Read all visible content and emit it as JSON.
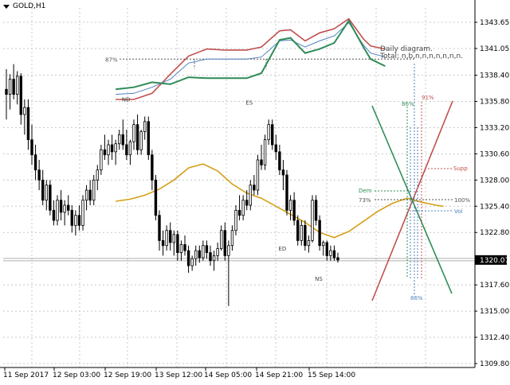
{
  "window": {
    "symbol_title": "GOLD,H1"
  },
  "chart_data": {
    "type": "candlestick",
    "symbol": "GOLD",
    "timeframe": "H1",
    "ylim": [
      1309.0,
      1345.5
    ],
    "y_ticks": [
      "1343.65",
      "1341.05",
      "1338.40",
      "1335.80",
      "1333.20",
      "1330.60",
      "1328.00",
      "1325.40",
      "1322.80",
      "1320.07",
      "1317.60",
      "1315.00",
      "1312.40",
      "1309.80"
    ],
    "current_price": "1320.07",
    "x_ticks": [
      "11 Sep 2017",
      "12 Sep 03:00",
      "12 Sep 19:00",
      "13 Sep 12:00",
      "14 Sep 05:00",
      "14 Sep 21:00",
      "15 Sep 14:00"
    ],
    "candles": [
      [
        1337.0,
        1339.0,
        1334.0,
        1336.5
      ],
      [
        1336.5,
        1338.5,
        1335.0,
        1338.0
      ],
      [
        1338.0,
        1339.5,
        1336.0,
        1336.5
      ],
      [
        1336.5,
        1338.8,
        1335.5,
        1338.3
      ],
      [
        1338.3,
        1338.6,
        1333.5,
        1334.5
      ],
      [
        1334.5,
        1336.0,
        1332.5,
        1335.2
      ],
      [
        1335.2,
        1336.0,
        1331.0,
        1332.0
      ],
      [
        1332.0,
        1333.5,
        1329.5,
        1330.5
      ],
      [
        1330.5,
        1331.5,
        1328.0,
        1329.0
      ],
      [
        1329.0,
        1330.0,
        1327.0,
        1328.0
      ],
      [
        1328.0,
        1329.0,
        1325.5,
        1326.0
      ],
      [
        1326.0,
        1328.0,
        1325.0,
        1327.5
      ],
      [
        1327.5,
        1328.0,
        1324.5,
        1325.0
      ],
      [
        1325.0,
        1326.0,
        1323.5,
        1324.0
      ],
      [
        1324.0,
        1326.5,
        1323.5,
        1326.0
      ],
      [
        1326.0,
        1327.0,
        1324.0,
        1324.8
      ],
      [
        1324.8,
        1326.0,
        1323.5,
        1325.5
      ],
      [
        1325.5,
        1326.5,
        1324.5,
        1325.0
      ],
      [
        1325.0,
        1325.5,
        1322.8,
        1323.5
      ],
      [
        1323.5,
        1325.0,
        1322.5,
        1324.5
      ],
      [
        1324.5,
        1325.5,
        1323.0,
        1323.5
      ],
      [
        1323.5,
        1326.5,
        1323.0,
        1326.0
      ],
      [
        1326.0,
        1327.5,
        1325.0,
        1327.0
      ],
      [
        1327.0,
        1328.0,
        1325.5,
        1326.0
      ],
      [
        1326.0,
        1328.5,
        1325.5,
        1328.0
      ],
      [
        1328.0,
        1329.5,
        1327.0,
        1329.0
      ],
      [
        1329.0,
        1331.5,
        1328.5,
        1331.0
      ],
      [
        1331.0,
        1332.5,
        1330.0,
        1330.5
      ],
      [
        1330.5,
        1332.0,
        1329.5,
        1331.5
      ],
      [
        1331.5,
        1332.5,
        1330.0,
        1330.8
      ],
      [
        1330.8,
        1332.0,
        1329.5,
        1331.6
      ],
      [
        1331.6,
        1333.0,
        1331.0,
        1332.5
      ],
      [
        1332.5,
        1334.0,
        1331.0,
        1331.5
      ],
      [
        1331.5,
        1333.0,
        1330.0,
        1330.5
      ],
      [
        1330.5,
        1332.0,
        1329.5,
        1331.8
      ],
      [
        1331.8,
        1334.0,
        1331.0,
        1333.5
      ],
      [
        1333.5,
        1334.5,
        1330.5,
        1331.0
      ],
      [
        1331.0,
        1333.0,
        1330.5,
        1332.8
      ],
      [
        1332.8,
        1334.3,
        1332.0,
        1333.8
      ],
      [
        1333.8,
        1334.3,
        1330.0,
        1330.5
      ],
      [
        1330.5,
        1331.0,
        1327.0,
        1328.0
      ],
      [
        1328.0,
        1328.5,
        1324.0,
        1324.5
      ],
      [
        1324.5,
        1325.0,
        1321.0,
        1322.0
      ],
      [
        1322.0,
        1323.0,
        1320.5,
        1321.5
      ],
      [
        1321.5,
        1323.5,
        1321.0,
        1323.0
      ],
      [
        1323.0,
        1323.8,
        1321.0,
        1321.8
      ],
      [
        1321.8,
        1323.0,
        1320.5,
        1322.6
      ],
      [
        1322.6,
        1323.0,
        1320.0,
        1320.8
      ],
      [
        1320.8,
        1322.0,
        1320.0,
        1321.6
      ],
      [
        1321.6,
        1322.5,
        1320.5,
        1321.0
      ],
      [
        1321.0,
        1321.5,
        1318.8,
        1319.5
      ],
      [
        1319.5,
        1320.5,
        1319.0,
        1320.2
      ],
      [
        1320.2,
        1321.5,
        1319.5,
        1321.0
      ],
      [
        1321.0,
        1321.5,
        1319.8,
        1320.3
      ],
      [
        1320.3,
        1322.0,
        1320.0,
        1321.5
      ],
      [
        1321.5,
        1322.0,
        1320.2,
        1320.8
      ],
      [
        1320.8,
        1321.5,
        1319.5,
        1320.0
      ],
      [
        1320.0,
        1321.0,
        1319.0,
        1320.5
      ],
      [
        1320.5,
        1321.8,
        1320.0,
        1321.2
      ],
      [
        1321.2,
        1323.5,
        1321.0,
        1323.0
      ],
      [
        1323.0,
        1323.8,
        1320.0,
        1320.5
      ],
      [
        1320.5,
        1322.0,
        1315.5,
        1321.5
      ],
      [
        1321.5,
        1323.5,
        1321.0,
        1323.0
      ],
      [
        1323.0,
        1325.5,
        1322.5,
        1325.0
      ],
      [
        1325.0,
        1326.5,
        1324.0,
        1324.5
      ],
      [
        1324.5,
        1326.5,
        1324.0,
        1326.0
      ],
      [
        1326.0,
        1327.0,
        1325.0,
        1325.5
      ],
      [
        1325.5,
        1328.0,
        1325.0,
        1327.5
      ],
      [
        1327.5,
        1328.5,
        1326.5,
        1327.0
      ],
      [
        1327.0,
        1330.5,
        1326.5,
        1330.0
      ],
      [
        1330.0,
        1331.5,
        1329.0,
        1329.5
      ],
      [
        1329.5,
        1332.5,
        1329.0,
        1332.0
      ],
      [
        1332.0,
        1334.0,
        1331.5,
        1333.5
      ],
      [
        1333.5,
        1334.0,
        1331.0,
        1331.5
      ],
      [
        1331.5,
        1332.5,
        1330.0,
        1330.8
      ],
      [
        1330.8,
        1331.5,
        1328.5,
        1329.0
      ],
      [
        1329.0,
        1330.0,
        1327.0,
        1328.5
      ],
      [
        1328.5,
        1329.0,
        1324.5,
        1325.0
      ],
      [
        1325.0,
        1326.5,
        1324.0,
        1326.0
      ],
      [
        1326.0,
        1326.8,
        1323.5,
        1324.0
      ],
      [
        1324.0,
        1324.5,
        1321.5,
        1322.0
      ],
      [
        1322.0,
        1324.0,
        1321.5,
        1323.5
      ],
      [
        1323.5,
        1324.0,
        1321.0,
        1321.5
      ],
      [
        1321.5,
        1322.5,
        1320.8,
        1322.0
      ],
      [
        1322.0,
        1326.5,
        1321.8,
        1326.0
      ],
      [
        1326.0,
        1326.5,
        1323.5,
        1324.0
      ],
      [
        1324.0,
        1324.5,
        1321.0,
        1321.5
      ],
      [
        1321.5,
        1322.0,
        1320.5,
        1321.8
      ],
      [
        1321.8,
        1322.0,
        1320.0,
        1320.5
      ],
      [
        1320.5,
        1321.5,
        1320.0,
        1321.0
      ],
      [
        1321.0,
        1321.5,
        1320.0,
        1320.3
      ],
      [
        1320.3,
        1320.8,
        1319.8,
        1320.07
      ]
    ],
    "moving_average": {
      "color": "#d4a017",
      "values": [
        [
          0,
          1325.9
        ],
        [
          4,
          1326.1
        ],
        [
          8,
          1326.5
        ],
        [
          12,
          1327.1
        ],
        [
          16,
          1328.0
        ],
        [
          20,
          1329.2
        ],
        [
          24,
          1329.6
        ],
        [
          28,
          1328.9
        ],
        [
          32,
          1327.6
        ],
        [
          36,
          1326.7
        ],
        [
          40,
          1326.2
        ],
        [
          44,
          1325.4
        ],
        [
          48,
          1324.6
        ],
        [
          52,
          1323.8
        ],
        [
          56,
          1322.8
        ],
        [
          60,
          1322.3
        ],
        [
          64,
          1322.9
        ],
        [
          68,
          1323.9
        ],
        [
          72,
          1324.9
        ],
        [
          76,
          1325.7
        ],
        [
          80,
          1326.2
        ],
        [
          84,
          1325.8
        ],
        [
          88,
          1325.5
        ],
        [
          90,
          1325.4
        ]
      ]
    },
    "envelope": {
      "red": [
        [
          0,
          1336.0
        ],
        [
          5,
          1336.0
        ],
        [
          10,
          1336.6
        ],
        [
          15,
          1338.5
        ],
        [
          20,
          1340.3
        ],
        [
          25,
          1341.0
        ],
        [
          30,
          1340.9
        ],
        [
          36,
          1340.9
        ],
        [
          40,
          1341.2
        ],
        [
          45,
          1342.8
        ],
        [
          48,
          1342.9
        ],
        [
          52,
          1341.8
        ],
        [
          56,
          1342.6
        ],
        [
          60,
          1343.0
        ],
        [
          64,
          1344.0
        ],
        [
          68,
          1342.0
        ],
        [
          70,
          1341.3
        ],
        [
          74,
          1341.0
        ]
      ],
      "blue": [
        [
          0,
          1336.5
        ],
        [
          5,
          1336.6
        ],
        [
          10,
          1337.2
        ],
        [
          15,
          1338.0
        ],
        [
          20,
          1339.6
        ],
        [
          25,
          1340.0
        ],
        [
          30,
          1340.0
        ],
        [
          36,
          1340.0
        ],
        [
          40,
          1340.2
        ],
        [
          45,
          1341.8
        ],
        [
          48,
          1341.9
        ],
        [
          52,
          1341.2
        ],
        [
          56,
          1341.8
        ],
        [
          60,
          1342.3
        ],
        [
          64,
          1343.6
        ],
        [
          68,
          1341.4
        ],
        [
          70,
          1340.6
        ],
        [
          74,
          1340.2
        ]
      ],
      "green": [
        [
          0,
          1337.0
        ],
        [
          5,
          1337.2
        ],
        [
          10,
          1337.7
        ],
        [
          15,
          1337.5
        ],
        [
          20,
          1338.2
        ],
        [
          25,
          1338.1
        ],
        [
          30,
          1338.1
        ],
        [
          36,
          1338.1
        ],
        [
          40,
          1338.6
        ],
        [
          45,
          1341.9
        ],
        [
          48,
          1342.1
        ],
        [
          52,
          1340.6
        ],
        [
          56,
          1341.0
        ],
        [
          60,
          1341.6
        ],
        [
          64,
          1343.8
        ],
        [
          68,
          1341.2
        ],
        [
          70,
          1340.0
        ],
        [
          74,
          1339.3
        ]
      ]
    },
    "markers": [
      {
        "label": "ND",
        "i": 33,
        "y": 1335.8
      },
      {
        "label": "ES",
        "i": 67,
        "y": 1335.5
      },
      {
        "label": "ED",
        "i": 76,
        "y": 1321.0
      },
      {
        "label": "NS",
        "i": 86,
        "y": 1318.0
      }
    ],
    "fib_level": {
      "label": "87%",
      "y": 1340.0
    },
    "info_text": {
      "line1": "Daily diagram.",
      "line2": "Total: n,b,n,n,n,n,n,n,n."
    },
    "diagram_labels": {
      "top_green": "86%",
      "top_red": "91%",
      "supp": "Supp",
      "dem": "Dem",
      "left_pct": "73%",
      "right_pct": "100%",
      "vol": "Vol",
      "bottom": "86%"
    }
  }
}
